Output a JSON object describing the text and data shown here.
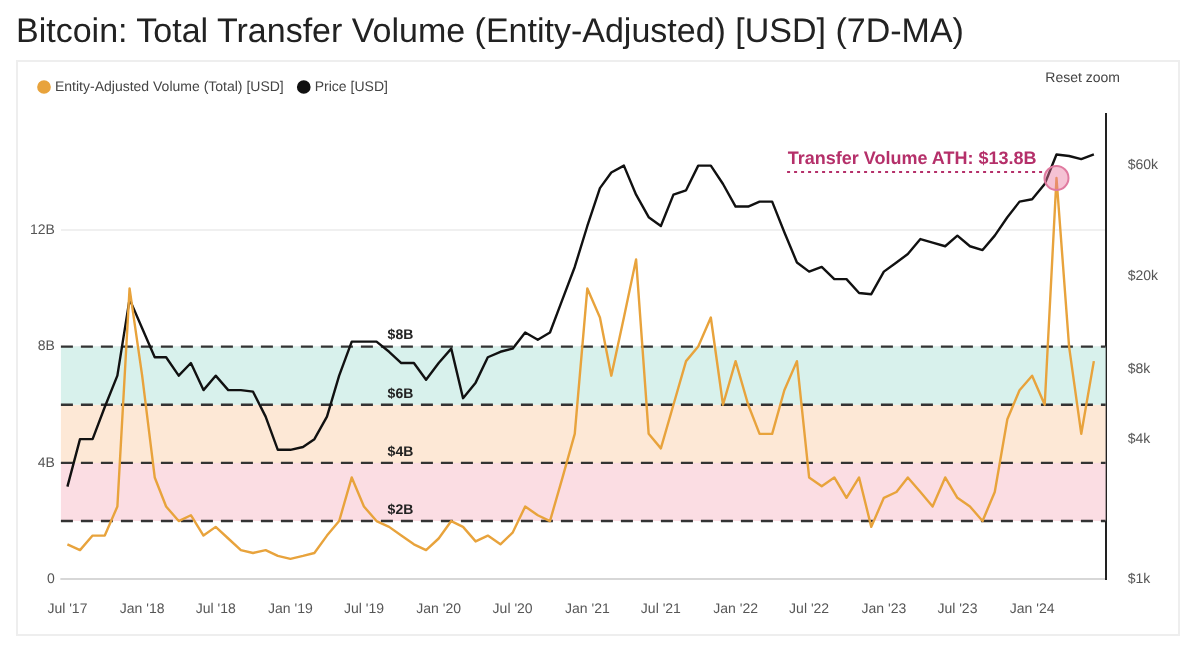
{
  "chart_data": {
    "type": "line",
    "title": "Bitcoin: Total Transfer Volume (Entity-Adjusted) [USD] (7D-MA)",
    "x": [
      "2017-07",
      "2017-08",
      "2017-09",
      "2017-10",
      "2017-11",
      "2017-12",
      "2018-01",
      "2018-02",
      "2018-03",
      "2018-04",
      "2018-05",
      "2018-06",
      "2018-07",
      "2018-08",
      "2018-09",
      "2018-10",
      "2018-11",
      "2018-12",
      "2019-01",
      "2019-02",
      "2019-03",
      "2019-04",
      "2019-05",
      "2019-06",
      "2019-07",
      "2019-08",
      "2019-09",
      "2019-10",
      "2019-11",
      "2019-12",
      "2020-01",
      "2020-02",
      "2020-03",
      "2020-04",
      "2020-05",
      "2020-06",
      "2020-07",
      "2020-08",
      "2020-09",
      "2020-10",
      "2020-11",
      "2020-12",
      "2021-01",
      "2021-02",
      "2021-03",
      "2021-04",
      "2021-05",
      "2021-06",
      "2021-07",
      "2021-08",
      "2021-09",
      "2021-10",
      "2021-11",
      "2021-12",
      "2022-01",
      "2022-02",
      "2022-03",
      "2022-04",
      "2022-05",
      "2022-06",
      "2022-07",
      "2022-08",
      "2022-09",
      "2022-10",
      "2022-11",
      "2022-12",
      "2023-01",
      "2023-02",
      "2023-03",
      "2023-04",
      "2023-05",
      "2023-06",
      "2023-07",
      "2023-08",
      "2023-09",
      "2023-10",
      "2023-11",
      "2023-12",
      "2024-01",
      "2024-02",
      "2024-03",
      "2024-04",
      "2024-05",
      "2024-06"
    ],
    "series": [
      {
        "name": "Entity-Adjusted Volume (Total) [USD]",
        "color": "#e8a33c",
        "values": [
          1.2,
          1.0,
          1.5,
          1.5,
          2.5,
          10,
          7,
          3.5,
          2.5,
          2.0,
          2.2,
          1.5,
          1.8,
          1.4,
          1.0,
          0.9,
          1.0,
          0.8,
          0.7,
          0.8,
          0.9,
          1.5,
          2.0,
          3.5,
          2.5,
          2.0,
          1.8,
          1.5,
          1.2,
          1.0,
          1.4,
          2.0,
          1.8,
          1.3,
          1.5,
          1.2,
          1.6,
          2.5,
          2.2,
          2.0,
          3.5,
          5,
          10,
          9,
          7,
          9,
          11,
          5,
          4.5,
          6,
          7.5,
          8,
          9,
          6,
          7.5,
          6,
          5,
          5,
          6.5,
          7.5,
          3.5,
          3.2,
          3.5,
          2.8,
          3.5,
          1.8,
          2.8,
          3,
          3.5,
          3,
          2.5,
          3.5,
          2.8,
          2.5,
          2,
          3,
          5.5,
          6.5,
          7,
          6,
          13.8,
          8,
          5,
          7.5
        ]
      },
      {
        "name": "Price [USD]",
        "color": "#111111",
        "axis": "y2",
        "values": [
          2500,
          4000,
          4000,
          5500,
          7500,
          16000,
          12000,
          9000,
          9000,
          7500,
          8500,
          6500,
          7500,
          6500,
          6500,
          6400,
          5000,
          3600,
          3600,
          3700,
          4000,
          5000,
          7500,
          10500,
          10500,
          10500,
          9500,
          8500,
          8500,
          7200,
          8500,
          9800,
          6000,
          7000,
          9000,
          9500,
          9800,
          11500,
          10700,
          11500,
          16000,
          22000,
          33000,
          48000,
          56000,
          60000,
          45000,
          36000,
          33000,
          45000,
          47000,
          60000,
          60000,
          50000,
          40000,
          40000,
          42000,
          42000,
          31000,
          23000,
          21000,
          22000,
          19500,
          19500,
          17000,
          16800,
          21000,
          23000,
          25000,
          29000,
          28000,
          27000,
          30000,
          27000,
          26000,
          30000,
          36000,
          42000,
          43000,
          50000,
          67000,
          66000,
          64000,
          67000
        ]
      }
    ],
    "xlim": [
      "2017-06-15",
      "2024-06-30"
    ],
    "xticks": [
      {
        "value": "2017-07",
        "label": "Jul '17"
      },
      {
        "value": "2018-01",
        "label": "Jan '18"
      },
      {
        "value": "2018-07",
        "label": "Jul '18"
      },
      {
        "value": "2019-01",
        "label": "Jan '19"
      },
      {
        "value": "2019-07",
        "label": "Jul '19"
      },
      {
        "value": "2020-01",
        "label": "Jan '20"
      },
      {
        "value": "2020-07",
        "label": "Jul '20"
      },
      {
        "value": "2021-01",
        "label": "Jan '21"
      },
      {
        "value": "2021-07",
        "label": "Jul '21"
      },
      {
        "value": "2022-01",
        "label": "Jan '22"
      },
      {
        "value": "2022-07",
        "label": "Jul '22"
      },
      {
        "value": "2023-01",
        "label": "Jan '23"
      },
      {
        "value": "2023-07",
        "label": "Jul '23"
      },
      {
        "value": "2024-01",
        "label": "Jan '24"
      }
    ],
    "ylim": [
      0,
      16
    ],
    "yticks": [
      0,
      {
        "value": 4,
        "label": "4B"
      },
      {
        "value": 8,
        "label": "8B"
      },
      {
        "value": 12,
        "label": "12B"
      }
    ],
    "y2lim": [
      1000,
      100000
    ],
    "y2ticks": [
      {
        "value": 1000,
        "label": "$1k"
      },
      {
        "value": 4000,
        "label": "$4k"
      },
      {
        "value": 8000,
        "label": "$8k"
      },
      {
        "value": 20000,
        "label": "$20k"
      },
      {
        "value": 60000,
        "label": "$60k"
      }
    ],
    "log": "y2",
    "grid": "y",
    "legend": "top left",
    "bands": [
      {
        "axis": "y",
        "from": 2,
        "to": 4,
        "color": "#fbdde3"
      },
      {
        "axis": "y",
        "from": 4,
        "to": 6,
        "color": "#fde8d6"
      },
      {
        "axis": "y",
        "from": 6,
        "to": 8,
        "color": "#d8f1ec"
      }
    ],
    "ref_lines": [
      {
        "axis": "y",
        "value": 2,
        "label": "$2B",
        "line_style": "dashed"
      },
      {
        "axis": "y",
        "value": 4,
        "label": "$4B",
        "line_style": "dashed"
      },
      {
        "axis": "y",
        "value": 6,
        "label": "$6B",
        "line_style": "dashed"
      },
      {
        "axis": "y",
        "value": 8,
        "label": "$8B",
        "line_style": "dashed"
      }
    ],
    "annotations": [
      "Reset zoom",
      {
        "text": "Transfer Volume ATH: $13.8B",
        "x": "2024-03",
        "y": 13.8
      }
    ]
  }
}
